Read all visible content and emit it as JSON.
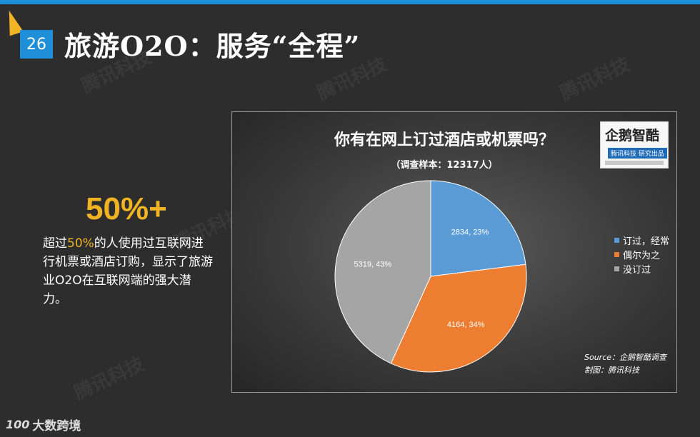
{
  "slide": {
    "number": "26",
    "title": "旅游O2O：服务“全程”",
    "watermark": "腾讯科技",
    "stat": "50%+",
    "desc_pre": "超过",
    "desc_hl": "50%",
    "desc_post": "的人使用过互联网进行机票或酒店订购，显示了旅游业O2O在互联网端的强大潜力。",
    "logo_main": "企鹅智酷",
    "logo_sub": "腾讯科技 研究出品",
    "source": "Source：企鹅智酷调查",
    "made_by": "制图：腾讯科技",
    "footer_mark": "100",
    "footer_brand": "大数跨境"
  },
  "chart_data": {
    "type": "pie",
    "title": "你有在网上订过酒店或机票吗？",
    "subtitle": "（调查样本：12317人）",
    "labels": [
      "订过，经常",
      "偶尔为之",
      "没订过"
    ],
    "values": [
      2834,
      4164,
      5319
    ],
    "percents": [
      23,
      34,
      43
    ],
    "data_labels": [
      "2834, 23%",
      "4164, 34%",
      "5319, 43%"
    ],
    "colors": [
      "#5b9bd5",
      "#ed7d31",
      "#a5a5a5"
    ],
    "legend_position": "right"
  }
}
